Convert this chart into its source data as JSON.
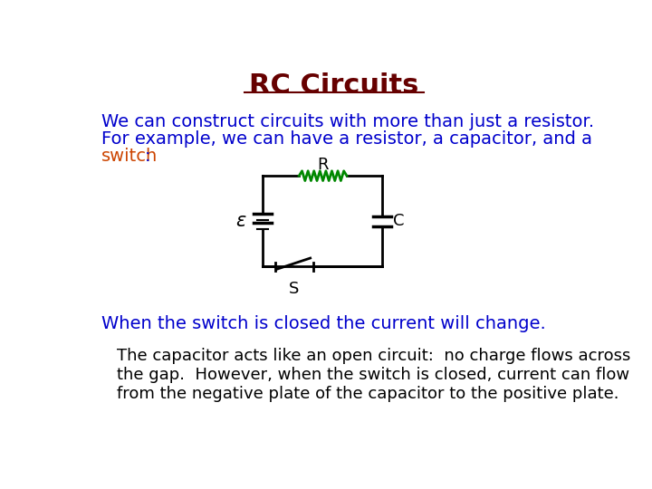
{
  "title": "RC Circuits",
  "title_color": "#660000",
  "title_fontsize": 22,
  "title_underline": true,
  "text1_line1": "We can construct circuits with more than just a resistor.",
  "text1_line2": "For example, we can have a resistor, a capacitor, and a",
  "text1_line3_a": "switch",
  "text1_line3_b": ":",
  "text1_color": "#0000cc",
  "text1_switch_color": "#cc4400",
  "text2": "When the switch is closed the current will change.",
  "text2_color": "#0000cc",
  "text3_line1": "The capacitor acts like an open circuit:  no charge flows across",
  "text3_line2": "the gap.  However, when the switch is closed, current can flow",
  "text3_line3": "from the negative plate of the capacitor to the positive plate.",
  "text3_color": "#000000",
  "bg_color": "#ffffff",
  "circuit_line_color": "#000000",
  "resistor_color": "#008800",
  "circuit_label_color": "#000000"
}
